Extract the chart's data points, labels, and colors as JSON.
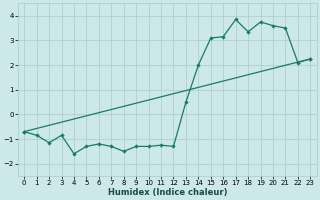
{
  "xlabel": "Humidex (Indice chaleur)",
  "bg_color": "#cce8e8",
  "grid_color": "#aacccc",
  "line_color": "#1a7a6a",
  "xlim": [
    -0.5,
    23.5
  ],
  "ylim": [
    -2.5,
    4.5
  ],
  "yticks": [
    -2,
    -1,
    0,
    1,
    2,
    3,
    4
  ],
  "xticks": [
    0,
    1,
    2,
    3,
    4,
    5,
    6,
    7,
    8,
    9,
    10,
    11,
    12,
    13,
    14,
    15,
    16,
    17,
    18,
    19,
    20,
    21,
    22,
    23
  ],
  "series1_x": [
    0,
    1,
    2,
    3,
    4,
    5,
    6,
    7,
    8,
    9,
    10,
    11,
    12,
    13,
    14,
    15,
    16,
    17,
    18,
    19,
    20,
    21,
    22,
    23
  ],
  "series1_y": [
    -0.7,
    -0.85,
    -1.15,
    -0.85,
    -1.6,
    -1.3,
    -1.2,
    -1.3,
    -1.5,
    -1.3,
    -1.3,
    -1.25,
    -1.3,
    0.5,
    2.0,
    3.1,
    3.15,
    3.85,
    3.35,
    3.75,
    3.6,
    3.5,
    2.1,
    2.25
  ],
  "series2_x": [
    0,
    23
  ],
  "series2_y": [
    -0.7,
    2.25
  ],
  "xlabel_fontsize": 6.0,
  "xlabel_fontweight": "bold",
  "tick_fontsize": 5.0,
  "linewidth": 0.9,
  "markersize": 2.2
}
